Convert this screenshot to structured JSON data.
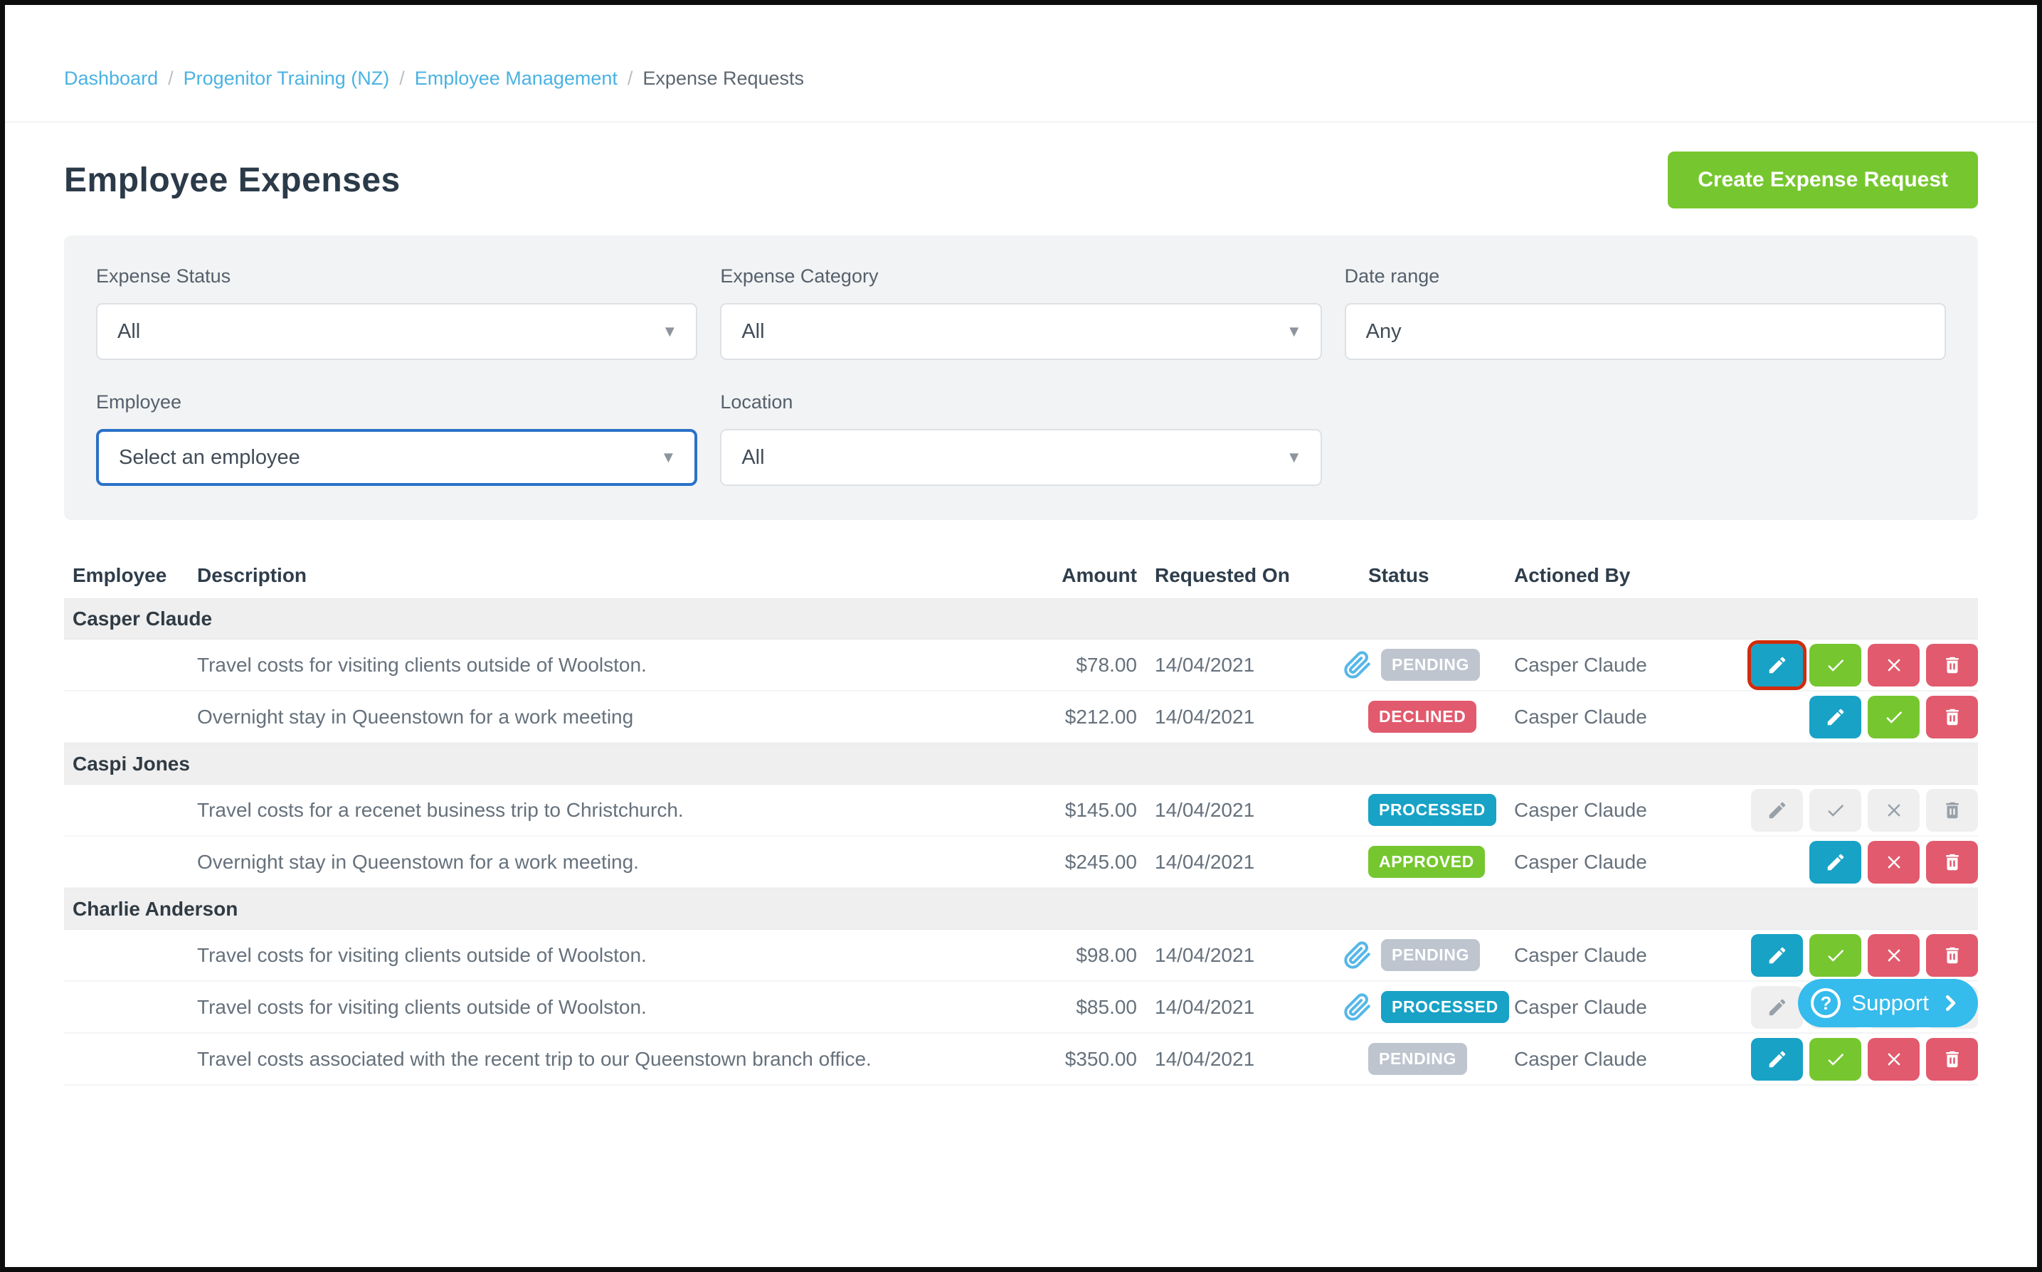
{
  "breadcrumb": {
    "separator": "/",
    "items": [
      {
        "name": "dashboard",
        "label": "Dashboard",
        "current": false
      },
      {
        "name": "progenitor-training-nz",
        "label": "Progenitor Training (NZ)",
        "current": false
      },
      {
        "name": "employee-management",
        "label": "Employee Management",
        "current": false
      },
      {
        "name": "expense-requests",
        "label": "Expense Requests",
        "current": true
      }
    ]
  },
  "page": {
    "title": "Employee Expenses",
    "create_button": "Create Expense Request"
  },
  "filters": {
    "expense_status": {
      "label": "Expense Status",
      "value": "All"
    },
    "expense_category": {
      "label": "Expense Category",
      "value": "All"
    },
    "date_range": {
      "label": "Date range",
      "value": "Any"
    },
    "employee": {
      "label": "Employee",
      "value": "Select an employee"
    },
    "location": {
      "label": "Location",
      "value": "All"
    }
  },
  "table": {
    "columns": [
      "Employee",
      "Description",
      "Amount",
      "Requested On",
      "Status",
      "Actioned By"
    ],
    "groups": [
      {
        "employee": "Casper Claude",
        "rows": [
          {
            "description": "Travel costs for visiting clients outside of Woolston.",
            "amount": "$78.00",
            "requested_on": "14/04/2021",
            "status": "PENDING",
            "attachment": true,
            "actioned_by": "Casper Claude",
            "actions": [
              {
                "type": "edit",
                "enabled": true,
                "highlighted": true
              },
              {
                "type": "approve",
                "enabled": true
              },
              {
                "type": "decline",
                "enabled": true
              },
              {
                "type": "delete",
                "enabled": true
              }
            ]
          },
          {
            "description": "Overnight stay in Queenstown for a work meeting",
            "amount": "$212.00",
            "requested_on": "14/04/2021",
            "status": "DECLINED",
            "attachment": false,
            "actioned_by": "Casper Claude",
            "actions": [
              {
                "type": "edit",
                "enabled": true
              },
              {
                "type": "approve",
                "enabled": true
              },
              {
                "type": "delete",
                "enabled": true
              }
            ]
          }
        ]
      },
      {
        "employee": "Caspi Jones",
        "rows": [
          {
            "description": "Travel costs for a recenet business trip to Christchurch.",
            "amount": "$145.00",
            "requested_on": "14/04/2021",
            "status": "PROCESSED",
            "attachment": false,
            "actioned_by": "Casper Claude",
            "actions": [
              {
                "type": "edit",
                "enabled": false
              },
              {
                "type": "approve",
                "enabled": false
              },
              {
                "type": "decline",
                "enabled": false
              },
              {
                "type": "delete",
                "enabled": false
              }
            ]
          },
          {
            "description": "Overnight stay in Queenstown for a work meeting.",
            "amount": "$245.00",
            "requested_on": "14/04/2021",
            "status": "APPROVED",
            "attachment": false,
            "actioned_by": "Casper Claude",
            "actions": [
              {
                "type": "edit",
                "enabled": true
              },
              {
                "type": "decline",
                "enabled": true
              },
              {
                "type": "delete",
                "enabled": true
              }
            ]
          }
        ]
      },
      {
        "employee": "Charlie Anderson",
        "rows": [
          {
            "description": "Travel costs for visiting clients outside of Woolston.",
            "amount": "$98.00",
            "requested_on": "14/04/2021",
            "status": "PENDING",
            "attachment": true,
            "actioned_by": "Casper Claude",
            "actions": [
              {
                "type": "edit",
                "enabled": true
              },
              {
                "type": "approve",
                "enabled": true
              },
              {
                "type": "decline",
                "enabled": true
              },
              {
                "type": "delete",
                "enabled": true
              }
            ]
          },
          {
            "description": "Travel costs for visiting clients outside of Woolston.",
            "amount": "$85.00",
            "requested_on": "14/04/2021",
            "status": "PROCESSED",
            "attachment": true,
            "actioned_by": "Casper Claude",
            "actions": [
              {
                "type": "edit",
                "enabled": false
              },
              {
                "type": "approve",
                "enabled": false
              },
              {
                "type": "decline",
                "enabled": false
              },
              {
                "type": "delete",
                "enabled": false
              }
            ]
          },
          {
            "description": "Travel costs associated with the recent trip to our Queenstown branch office.",
            "amount": "$350.00",
            "requested_on": "14/04/2021",
            "status": "PENDING",
            "attachment": false,
            "actioned_by": "Casper Claude",
            "actions": [
              {
                "type": "edit",
                "enabled": true
              },
              {
                "type": "approve",
                "enabled": true
              },
              {
                "type": "decline",
                "enabled": true
              },
              {
                "type": "delete",
                "enabled": true
              }
            ]
          }
        ]
      }
    ]
  },
  "status_colors": {
    "PENDING": "#bec5cf",
    "DECLINED": "#e25a6d",
    "PROCESSED": "#18a2c6",
    "APPROVED": "#76c72f"
  },
  "support": {
    "label": "Support"
  },
  "colors": {
    "accent_green": "#76c72f",
    "teal": "#18a2c6",
    "red": "#e25a6d",
    "link_blue": "#4ab2e3",
    "focus_blue": "#2a71c8",
    "support_blue": "#35bbec",
    "paperclip_blue": "#55b7e8",
    "highlight_red": "#d02c0d"
  }
}
